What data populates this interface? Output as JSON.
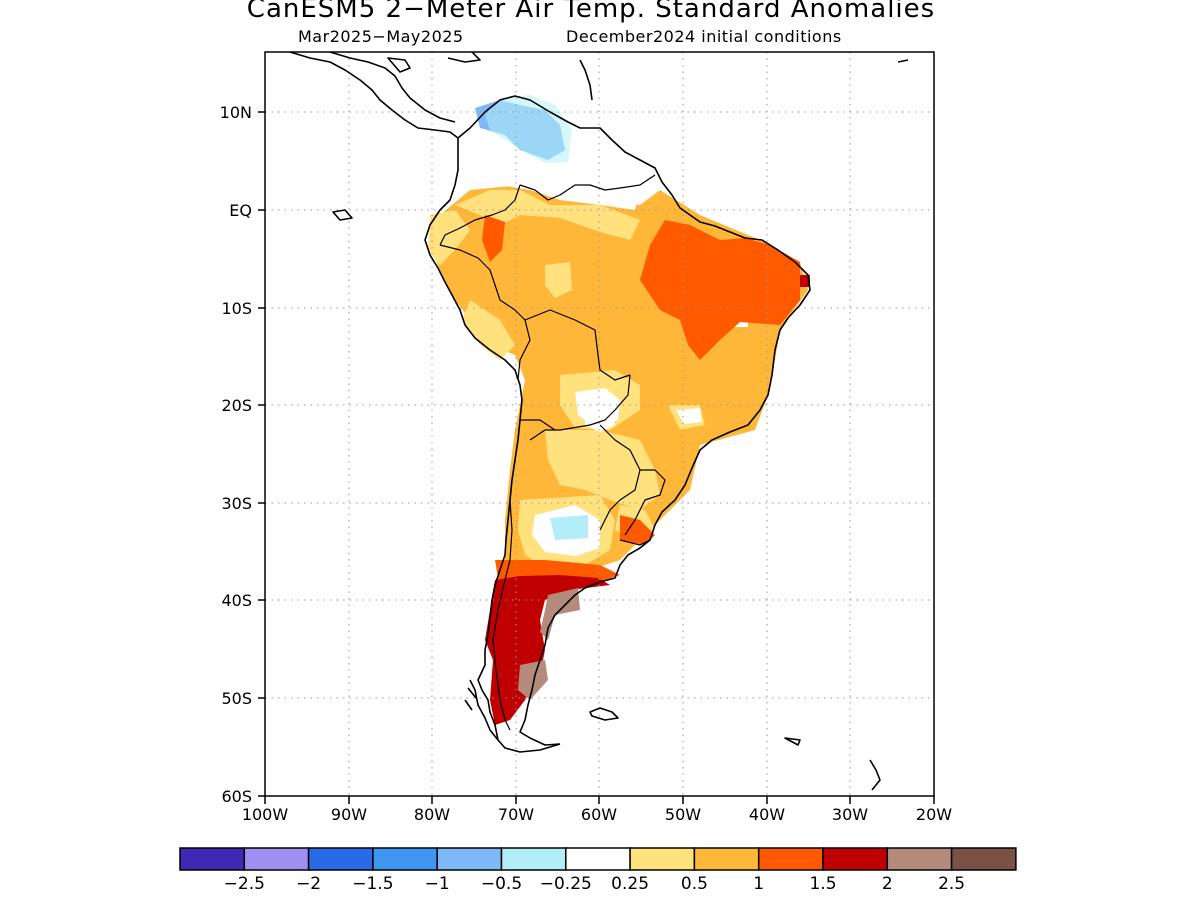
{
  "title": "CanESM5 2−Meter Air Temp. Standard Anomalies",
  "subtitle_left": "Mar2025−May2025",
  "subtitle_right": "December2024 initial conditions",
  "map": {
    "region": "South America",
    "lon_range": [
      -100,
      -20
    ],
    "lat_range": [
      -60,
      16
    ],
    "grid": "dotted",
    "x_tick_labels": [
      "100W",
      "90W",
      "80W",
      "70W",
      "60W",
      "50W",
      "40W",
      "30W",
      "20W"
    ],
    "y_tick_labels": [
      "10N",
      "EQ",
      "10S",
      "20S",
      "30S",
      "40S",
      "50S",
      "60S"
    ]
  },
  "colorbar": {
    "labels": [
      "−2.5",
      "−2",
      "−1.5",
      "−1",
      "−0.5",
      "−0.25",
      "0.25",
      "0.5",
      "1",
      "1.5",
      "2",
      "2.5"
    ],
    "colors": [
      "#3f28b4",
      "#9e8ff0",
      "#2a6ae6",
      "#3f96f0",
      "#7fb8f6",
      "#b2eef8",
      "#ffffff",
      "#ffe17e",
      "#ffb73a",
      "#ff5a00",
      "#c00000",
      "#b48a7c",
      "#7a5145"
    ]
  },
  "anomaly_colors": {
    "warm_light": "#ffe17e",
    "warm": "#ffb73a",
    "hot": "#ff5a00",
    "very_hot": "#c00000",
    "extreme": "#b48a7c",
    "cool_light": "#b2eef8",
    "cool": "#7fb8f6"
  }
}
